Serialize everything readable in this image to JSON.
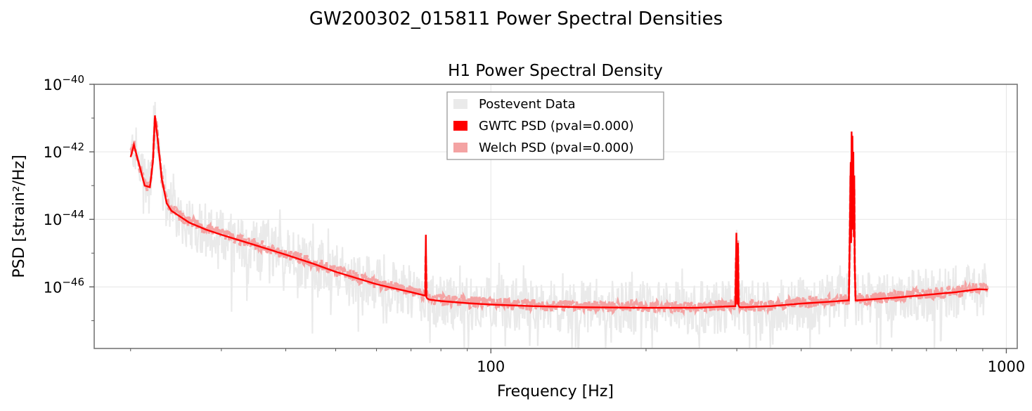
{
  "figure": {
    "suptitle": "GW200302_015811 Power Spectral Densities"
  },
  "chart_data": {
    "type": "line",
    "title": "H1 Power Spectral Density",
    "xlabel": "Frequency [Hz]",
    "ylabel": "PSD [strain²/Hz]",
    "xscale": "log",
    "yscale": "log",
    "xlim": [
      17,
      1050
    ],
    "ylim": [
      1.5e-48,
      1e-40
    ],
    "x_ticks": [
      {
        "value": 100,
        "label": "100"
      },
      {
        "value": 1000,
        "label": "1000"
      }
    ],
    "y_ticks": [
      {
        "value": 1e-40,
        "mantissa": "10",
        "exponent": "−40"
      },
      {
        "value": 1e-42,
        "mantissa": "10",
        "exponent": "−42"
      },
      {
        "value": 1e-44,
        "mantissa": "10",
        "exponent": "−44"
      },
      {
        "value": 1e-46,
        "mantissa": "10",
        "exponent": "−46"
      }
    ],
    "grid": true,
    "legend_position": "top-center",
    "legend": [
      {
        "label": "Postevent Data",
        "color": "#eaeaea"
      },
      {
        "label": "GWTC PSD (pval=0.000)",
        "color": "#ff0000"
      },
      {
        "label": "Welch PSD (pval=0.000)",
        "color": "#f4a3a3"
      }
    ],
    "series": [
      {
        "name": "GWTC PSD (pval=0.000)",
        "color": "#ff0000",
        "x": [
          20,
          20.3,
          20.8,
          21.3,
          21.8,
          22.1,
          22.3,
          22.6,
          23,
          23.5,
          24,
          26,
          28,
          30,
          35,
          40,
          45,
          50,
          55,
          60,
          65,
          70,
          74.6,
          74.8,
          75,
          75.3,
          76,
          80,
          90,
          100,
          120,
          150,
          200,
          250,
          298,
          299.5,
          300.5,
          301.5,
          302.5,
          304,
          310,
          350,
          400,
          450,
          495,
          497,
          499,
          500,
          501,
          502,
          503,
          504,
          505,
          506,
          507,
          508,
          510,
          514,
          550,
          600,
          700,
          800,
          880,
          920
        ],
        "y": [
          7e-43,
          1.6e-42,
          4e-43,
          1e-43,
          9e-44,
          5e-43,
          1.2e-41,
          2e-42,
          1.5e-43,
          3e-44,
          1.8e-44,
          8e-45,
          5e-45,
          3.5e-45,
          1.7e-45,
          9e-46,
          5e-46,
          2.8e-46,
          1.8e-46,
          1.2e-46,
          9e-47,
          7e-47,
          5.5e-47,
          3.5e-45,
          5e-47,
          4.5e-47,
          4.2e-47,
          3.8e-47,
          3.3e-47,
          3e-47,
          2.7e-47,
          2.5e-47,
          2.4e-47,
          2.4e-47,
          2.7e-47,
          4e-45,
          3e-47,
          2e-45,
          2.8e-47,
          2.5e-47,
          2.5e-47,
          2.7e-47,
          3.2e-47,
          3.6e-47,
          4e-47,
          3e-45,
          5e-43,
          2e-45,
          4e-42,
          5e-45,
          3e-42,
          6e-45,
          1e-42,
          3e-45,
          2e-43,
          5e-46,
          4e-47,
          4e-47,
          4.3e-47,
          4.7e-47,
          5.8e-47,
          7e-47,
          8.5e-47,
          8.3e-47
        ]
      }
    ]
  }
}
